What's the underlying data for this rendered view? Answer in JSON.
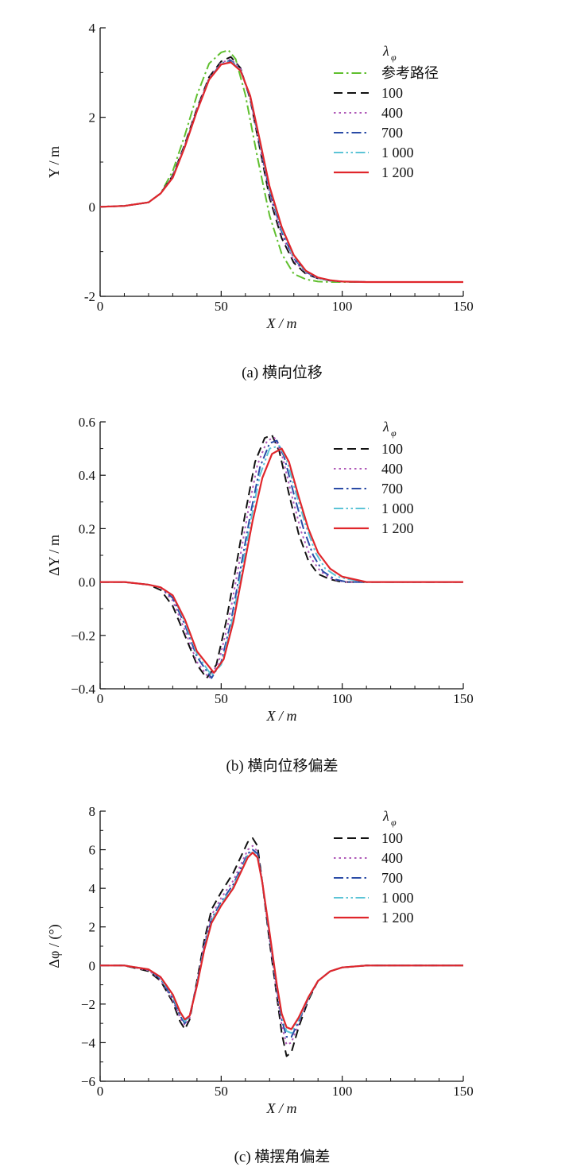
{
  "chart_data": [
    {
      "type": "line",
      "caption": "(a) 横向位移",
      "xlabel": "X / m",
      "ylabel": "Y / m",
      "xlim": [
        0,
        150
      ],
      "ylim": [
        -2,
        4
      ],
      "xticks": [
        0,
        50,
        100,
        150
      ],
      "yticks": [
        -2,
        0,
        2,
        4
      ],
      "grid": false,
      "legend_placement": "top-right",
      "legend_title": "λ",
      "legend_title_sub": "φ",
      "series": [
        {
          "name": "参考路径",
          "color": "#5fbf2e",
          "dash": "dashdot",
          "x": [
            0,
            10,
            20,
            25,
            30,
            35,
            40,
            45,
            50,
            53,
            56,
            60,
            65,
            70,
            75,
            80,
            85,
            90,
            95,
            100,
            110,
            120,
            150
          ],
          "y": [
            0,
            0.02,
            0.1,
            0.3,
            0.8,
            1.6,
            2.5,
            3.2,
            3.45,
            3.5,
            3.3,
            2.5,
            1.1,
            -0.2,
            -1.05,
            -1.5,
            -1.62,
            -1.67,
            -1.68,
            -1.68,
            -1.68,
            -1.68,
            -1.68
          ]
        },
        {
          "name": "100",
          "color": "#111111",
          "dash": "dash",
          "x": [
            0,
            10,
            20,
            25,
            30,
            35,
            40,
            45,
            50,
            54,
            58,
            62,
            66,
            70,
            75,
            80,
            85,
            90,
            95,
            100,
            110,
            120,
            150
          ],
          "y": [
            0,
            0.02,
            0.1,
            0.3,
            0.7,
            1.4,
            2.2,
            2.9,
            3.25,
            3.35,
            3.1,
            2.4,
            1.3,
            0.2,
            -0.7,
            -1.25,
            -1.5,
            -1.6,
            -1.65,
            -1.67,
            -1.68,
            -1.68,
            -1.68
          ]
        },
        {
          "name": "400",
          "color": "#b05ab8",
          "dash": "dot",
          "x": [
            0,
            10,
            20,
            25,
            30,
            35,
            40,
            45,
            50,
            54,
            58,
            62,
            66,
            70,
            75,
            80,
            85,
            90,
            95,
            100,
            110,
            120,
            150
          ],
          "y": [
            0,
            0.02,
            0.1,
            0.3,
            0.68,
            1.38,
            2.18,
            2.88,
            3.22,
            3.3,
            3.08,
            2.42,
            1.35,
            0.28,
            -0.62,
            -1.2,
            -1.48,
            -1.6,
            -1.65,
            -1.67,
            -1.68,
            -1.68,
            -1.68
          ]
        },
        {
          "name": "700",
          "color": "#2a4ba6",
          "dash": "dashdot",
          "x": [
            0,
            10,
            20,
            25,
            30,
            35,
            40,
            45,
            50,
            54,
            58,
            62,
            66,
            70,
            75,
            80,
            85,
            90,
            95,
            100,
            110,
            120,
            150
          ],
          "y": [
            0,
            0.02,
            0.1,
            0.3,
            0.67,
            1.36,
            2.16,
            2.86,
            3.2,
            3.27,
            3.06,
            2.44,
            1.4,
            0.35,
            -0.55,
            -1.15,
            -1.46,
            -1.59,
            -1.65,
            -1.67,
            -1.68,
            -1.68,
            -1.68
          ]
        },
        {
          "name": "1 000",
          "color": "#5cc4d6",
          "dash": "dashdotdot",
          "x": [
            0,
            10,
            20,
            25,
            30,
            35,
            40,
            45,
            50,
            54,
            58,
            62,
            66,
            70,
            75,
            80,
            85,
            90,
            95,
            100,
            110,
            120,
            150
          ],
          "y": [
            0,
            0.02,
            0.1,
            0.3,
            0.66,
            1.35,
            2.15,
            2.85,
            3.19,
            3.25,
            3.05,
            2.46,
            1.44,
            0.4,
            -0.5,
            -1.12,
            -1.45,
            -1.59,
            -1.65,
            -1.67,
            -1.68,
            -1.68,
            -1.68
          ]
        },
        {
          "name": "1 200",
          "color": "#e0262b",
          "dash": "solid",
          "x": [
            0,
            10,
            20,
            25,
            30,
            35,
            40,
            45,
            50,
            54,
            58,
            62,
            66,
            70,
            75,
            80,
            85,
            90,
            95,
            100,
            110,
            120,
            150
          ],
          "y": [
            0,
            0.02,
            0.1,
            0.3,
            0.65,
            1.34,
            2.14,
            2.84,
            3.18,
            3.23,
            3.04,
            2.48,
            1.48,
            0.45,
            -0.45,
            -1.08,
            -1.43,
            -1.58,
            -1.64,
            -1.67,
            -1.68,
            -1.68,
            -1.68
          ]
        }
      ]
    },
    {
      "type": "line",
      "caption": "(b) 横向位移偏差",
      "xlabel": "X / m",
      "ylabel": "ΔY / m",
      "xlim": [
        0,
        150
      ],
      "ylim": [
        -0.4,
        0.6
      ],
      "xticks": [
        0,
        50,
        100,
        150
      ],
      "yticks": [
        -0.4,
        -0.2,
        0.0,
        0.2,
        0.4,
        0.6
      ],
      "ytick_labels": [
        "−0.4",
        "−0.2",
        "0.0",
        "0.2",
        "0.4",
        "0.6"
      ],
      "grid": false,
      "legend_placement": "top-right",
      "legend_title": "λ",
      "legend_title_sub": "φ",
      "series": [
        {
          "name": "100",
          "color": "#111111",
          "dash": "dash",
          "x": [
            0,
            10,
            20,
            25,
            30,
            35,
            40,
            44,
            48,
            52,
            56,
            60,
            64,
            68,
            71,
            74,
            78,
            82,
            86,
            90,
            95,
            100,
            110,
            130,
            150
          ],
          "y": [
            0,
            0,
            -0.01,
            -0.03,
            -0.09,
            -0.2,
            -0.31,
            -0.36,
            -0.31,
            -0.15,
            0.05,
            0.26,
            0.45,
            0.54,
            0.55,
            0.49,
            0.33,
            0.18,
            0.08,
            0.03,
            0.01,
            0,
            0,
            0,
            0
          ]
        },
        {
          "name": "400",
          "color": "#b05ab8",
          "dash": "dot",
          "x": [
            0,
            10,
            20,
            25,
            30,
            35,
            40,
            45,
            49,
            53,
            57,
            61,
            65,
            69,
            72,
            75,
            79,
            83,
            87,
            91,
            96,
            101,
            110,
            130,
            150
          ],
          "y": [
            0,
            0,
            -0.01,
            -0.02,
            -0.07,
            -0.18,
            -0.3,
            -0.36,
            -0.3,
            -0.15,
            0.05,
            0.26,
            0.44,
            0.53,
            0.54,
            0.48,
            0.33,
            0.19,
            0.09,
            0.04,
            0.01,
            0,
            0,
            0,
            0
          ]
        },
        {
          "name": "700",
          "color": "#2a4ba6",
          "dash": "dashdot",
          "x": [
            0,
            10,
            20,
            25,
            30,
            35,
            40,
            46,
            50,
            54,
            58,
            62,
            66,
            70,
            73,
            76,
            80,
            84,
            88,
            92,
            97,
            102,
            110,
            130,
            150
          ],
          "y": [
            0,
            0,
            -0.01,
            -0.02,
            -0.06,
            -0.16,
            -0.28,
            -0.36,
            -0.3,
            -0.15,
            0.05,
            0.25,
            0.43,
            0.52,
            0.53,
            0.47,
            0.33,
            0.2,
            0.1,
            0.04,
            0.01,
            0,
            0,
            0,
            0
          ]
        },
        {
          "name": "1 000",
          "color": "#5cc4d6",
          "dash": "dashdotdot",
          "x": [
            0,
            10,
            20,
            25,
            30,
            35,
            40,
            46,
            50,
            54,
            58,
            62,
            66,
            70,
            74,
            77,
            81,
            85,
            89,
            93,
            98,
            103,
            110,
            130,
            150
          ],
          "y": [
            0,
            0,
            -0.01,
            -0.02,
            -0.05,
            -0.15,
            -0.27,
            -0.35,
            -0.31,
            -0.17,
            0.02,
            0.22,
            0.4,
            0.5,
            0.51,
            0.46,
            0.33,
            0.21,
            0.11,
            0.05,
            0.02,
            0.01,
            0,
            0,
            0
          ]
        },
        {
          "name": "1 200",
          "color": "#e0262b",
          "dash": "solid",
          "x": [
            0,
            10,
            20,
            25,
            30,
            35,
            40,
            47,
            51,
            55,
            59,
            63,
            67,
            71,
            75,
            78,
            82,
            86,
            90,
            95,
            100,
            105,
            110,
            130,
            150
          ],
          "y": [
            0,
            0,
            -0.01,
            -0.02,
            -0.05,
            -0.14,
            -0.26,
            -0.34,
            -0.29,
            -0.15,
            0.04,
            0.23,
            0.39,
            0.48,
            0.5,
            0.45,
            0.32,
            0.2,
            0.11,
            0.05,
            0.02,
            0.01,
            0,
            0,
            0
          ]
        }
      ]
    },
    {
      "type": "line",
      "caption": "(c) 横摆角偏差",
      "xlabel": "X / m",
      "ylabel": "Δφ / (°)",
      "xlim": [
        0,
        150
      ],
      "ylim": [
        -6,
        8
      ],
      "xticks": [
        0,
        50,
        100,
        150
      ],
      "yticks": [
        -6,
        -4,
        -2,
        0,
        2,
        4,
        6,
        8
      ],
      "ytick_labels": [
        "−6",
        "−4",
        "−2",
        "0",
        "2",
        "4",
        "6",
        "8"
      ],
      "grid": false,
      "legend_placement": "top-right",
      "legend_title": "λ",
      "legend_title_sub": "φ",
      "series": [
        {
          "name": "100",
          "color": "#111111",
          "dash": "dash",
          "x": [
            0,
            10,
            20,
            25,
            30,
            33,
            35,
            37,
            40,
            43,
            46,
            50,
            55,
            58,
            61,
            63,
            65,
            67,
            70,
            73,
            75,
            77,
            79,
            82,
            86,
            90,
            95,
            100,
            110,
            130,
            150
          ],
          "y": [
            0,
            0,
            -0.3,
            -0.8,
            -1.9,
            -2.9,
            -3.3,
            -2.8,
            -0.8,
            1.3,
            2.9,
            3.8,
            4.8,
            5.6,
            6.4,
            6.6,
            6.2,
            4.3,
            1.2,
            -1.6,
            -3.5,
            -4.7,
            -4.5,
            -3.2,
            -1.8,
            -0.8,
            -0.3,
            -0.1,
            0,
            0,
            0
          ]
        },
        {
          "name": "400",
          "color": "#b05ab8",
          "dash": "dot",
          "x": [
            0,
            10,
            20,
            25,
            30,
            33,
            35,
            37,
            40,
            43,
            46,
            50,
            55,
            58,
            61,
            63,
            65,
            67,
            70,
            73,
            75,
            77,
            79,
            82,
            86,
            90,
            95,
            100,
            110,
            130,
            150
          ],
          "y": [
            0,
            0,
            -0.25,
            -0.75,
            -1.8,
            -2.7,
            -3.1,
            -2.7,
            -0.9,
            1.1,
            2.6,
            3.5,
            4.4,
            5.2,
            6.0,
            6.2,
            5.9,
            4.3,
            1.4,
            -1.4,
            -3.1,
            -4.1,
            -4.0,
            -3.0,
            -1.7,
            -0.8,
            -0.3,
            -0.1,
            0,
            0,
            0
          ]
        },
        {
          "name": "700",
          "color": "#2a4ba6",
          "dash": "dashdot",
          "x": [
            0,
            10,
            20,
            25,
            30,
            33,
            35,
            37,
            40,
            43,
            46,
            50,
            55,
            58,
            61,
            63,
            65,
            67,
            70,
            73,
            75,
            77,
            79,
            82,
            86,
            90,
            95,
            100,
            110,
            130,
            150
          ],
          "y": [
            0,
            0,
            -0.2,
            -0.7,
            -1.7,
            -2.6,
            -3.0,
            -2.6,
            -0.95,
            1.0,
            2.4,
            3.3,
            4.2,
            5.0,
            5.8,
            6.0,
            5.8,
            4.3,
            1.5,
            -1.2,
            -2.8,
            -3.7,
            -3.7,
            -2.9,
            -1.7,
            -0.8,
            -0.3,
            -0.1,
            0,
            0,
            0
          ]
        },
        {
          "name": "1 000",
          "color": "#5cc4d6",
          "dash": "dashdotdot",
          "x": [
            0,
            10,
            20,
            25,
            30,
            33,
            35,
            37,
            40,
            43,
            46,
            50,
            55,
            58,
            61,
            63,
            65,
            67,
            70,
            73,
            75,
            77,
            79,
            82,
            86,
            90,
            95,
            100,
            110,
            130,
            150
          ],
          "y": [
            0,
            0,
            -0.2,
            -0.65,
            -1.6,
            -2.5,
            -2.9,
            -2.6,
            -1.0,
            0.9,
            2.3,
            3.2,
            4.1,
            4.9,
            5.7,
            5.9,
            5.7,
            4.3,
            1.6,
            -1.1,
            -2.6,
            -3.4,
            -3.5,
            -2.8,
            -1.7,
            -0.8,
            -0.3,
            -0.1,
            0,
            0,
            0
          ]
        },
        {
          "name": "1 200",
          "color": "#e0262b",
          "dash": "solid",
          "x": [
            0,
            10,
            20,
            25,
            30,
            33,
            35,
            37,
            40,
            43,
            46,
            50,
            55,
            58,
            61,
            63,
            65,
            67,
            70,
            73,
            75,
            77,
            79,
            82,
            86,
            90,
            95,
            100,
            110,
            130,
            150
          ],
          "y": [
            0,
            0,
            -0.2,
            -0.6,
            -1.5,
            -2.4,
            -2.8,
            -2.6,
            -1.05,
            0.8,
            2.2,
            3.1,
            4.0,
            4.8,
            5.6,
            5.85,
            5.6,
            4.3,
            1.7,
            -1.0,
            -2.5,
            -3.2,
            -3.3,
            -2.7,
            -1.65,
            -0.8,
            -0.3,
            -0.1,
            0,
            0,
            0
          ]
        }
      ]
    }
  ]
}
